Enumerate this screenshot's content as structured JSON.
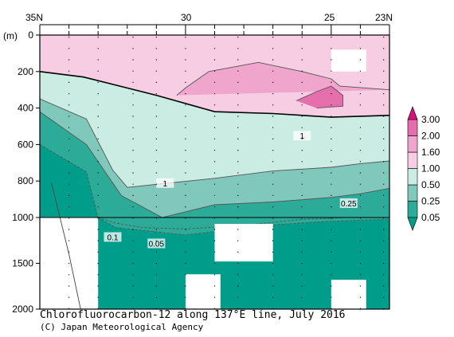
{
  "chart_data": {
    "type": "contour-section",
    "title": "Chlorofluorocarbon-12 along 137°E line, July 2016",
    "credit": "(C) Japan Meteorological Agency",
    "x_axis": {
      "range": [
        35,
        23
      ],
      "ticks": [
        "35N",
        "30",
        "25",
        "23N"
      ],
      "tick_values": [
        35,
        30,
        25,
        23
      ]
    },
    "y_axis": {
      "unit_label": "(m)",
      "upper_range": [
        0,
        1000
      ],
      "lower_range": [
        1000,
        2000
      ],
      "ticks": [
        "0",
        "200",
        "400",
        "600",
        "800",
        "1000",
        "1500",
        "2000"
      ],
      "tick_values": [
        0,
        200,
        400,
        600,
        800,
        1000,
        1500,
        2000
      ]
    },
    "station_lats": [
      34,
      33,
      31.8,
      31,
      30,
      29,
      28.2,
      27,
      26,
      25,
      24,
      23.2
    ],
    "colorbar": {
      "levels": [
        "0.05",
        "0.25",
        "0.50",
        "1.00",
        "1.60",
        "2.00",
        "3.00"
      ],
      "colors": [
        "#009e8a",
        "#2bab98",
        "#80c8bb",
        "#cbece3",
        "#f7cde3",
        "#f0a5cc",
        "#e46fac",
        "#d6127a"
      ]
    },
    "contour_labels": [
      "1",
      "1",
      "0.25",
      "0.1",
      "0.05"
    ],
    "layers": [
      {
        "level": 0.05,
        "upper": [
          [
            35,
            600
          ],
          [
            33.4,
            750
          ],
          [
            33,
            1000
          ],
          [
            23,
            1000
          ]
        ],
        "lower": [
          [
            33,
            1000
          ],
          [
            32.4,
            1110
          ],
          [
            30,
            1190
          ],
          [
            27,
            1080
          ],
          [
            25,
            1040
          ],
          [
            23,
            1020
          ]
        ]
      },
      {
        "level": 0.1,
        "upper": [],
        "lower": [
          [
            33,
            1000
          ],
          [
            32.4,
            1060
          ],
          [
            31.5,
            1110
          ],
          [
            30,
            1125
          ],
          [
            28,
            1085
          ],
          [
            26,
            1020
          ],
          [
            25,
            1010
          ],
          [
            24.5,
            1000
          ],
          [
            23,
            1000
          ]
        ]
      },
      {
        "level": 0.25,
        "upper": [
          [
            35,
            420
          ],
          [
            33.4,
            600
          ],
          [
            32.2,
            880
          ],
          [
            30.8,
            1000
          ],
          [
            29,
            930
          ],
          [
            27,
            915
          ],
          [
            25,
            890
          ],
          [
            24,
            870
          ],
          [
            23,
            840
          ]
        ],
        "lower": []
      },
      {
        "level": 0.5,
        "upper": [
          [
            35,
            350
          ],
          [
            33.4,
            460
          ],
          [
            32.5,
            740
          ],
          [
            32,
            835
          ],
          [
            30.5,
            810
          ],
          [
            29,
            785
          ],
          [
            27,
            745
          ],
          [
            25,
            725
          ],
          [
            24,
            705
          ],
          [
            23,
            690
          ]
        ],
        "lower": []
      },
      {
        "level": 1.0,
        "upper": [
          [
            35,
            200
          ],
          [
            33.5,
            230
          ],
          [
            31,
            330
          ],
          [
            29,
            420
          ],
          [
            27,
            430
          ],
          [
            25,
            450
          ],
          [
            23,
            440
          ]
        ],
        "lower": []
      },
      {
        "level": 1.6,
        "upper": [
          [
            30.3,
            330
          ],
          [
            30,
            290
          ],
          [
            29.2,
            200
          ],
          [
            27.5,
            150
          ],
          [
            26,
            200
          ],
          [
            25,
            240
          ],
          [
            24.7,
            280
          ],
          [
            23,
            300
          ]
        ],
        "lower": []
      },
      {
        "level": 2.0,
        "upper": [
          [
            26.2,
            360
          ],
          [
            25.5,
            310
          ],
          [
            25,
            280
          ],
          [
            24.6,
            330
          ],
          [
            24.6,
            390
          ],
          [
            25.5,
            400
          ]
        ],
        "lower": []
      }
    ],
    "missing_areas": [
      {
        "lat": [
          25,
          23.8
        ],
        "depth": [
          80,
          200
        ]
      },
      {
        "lat": [
          35,
          33
        ],
        "depth": [
          1000,
          2000
        ]
      },
      {
        "lat": [
          29,
          27
        ],
        "depth": [
          1070,
          1480
        ]
      },
      {
        "lat": [
          30,
          28.8
        ],
        "depth": [
          1620,
          2000
        ]
      },
      {
        "lat": [
          25,
          23.8
        ],
        "depth": [
          1680,
          2000
        ]
      }
    ]
  }
}
